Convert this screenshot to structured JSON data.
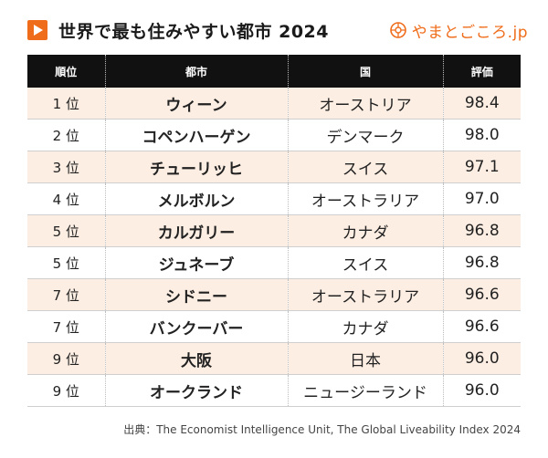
{
  "header": {
    "title": "世界で最も住みやすい都市 2024",
    "logo_text": "やまとごころ.jp",
    "brand_color": "#ef6c1a",
    "icon": "play-icon"
  },
  "chart_data": {
    "type": "table",
    "columns": [
      "順位",
      "都市",
      "国",
      "評価"
    ],
    "rows": [
      {
        "rank": "1 位",
        "city": "ウィーン",
        "country": "オーストリア",
        "score": "98.4"
      },
      {
        "rank": "2 位",
        "city": "コペンハーゲン",
        "country": "デンマーク",
        "score": "98.0"
      },
      {
        "rank": "3 位",
        "city": "チューリッヒ",
        "country": "スイス",
        "score": "97.1"
      },
      {
        "rank": "4 位",
        "city": "メルボルン",
        "country": "オーストラリア",
        "score": "97.0"
      },
      {
        "rank": "5 位",
        "city": "カルガリー",
        "country": "カナダ",
        "score": "96.8"
      },
      {
        "rank": "5 位",
        "city": "ジュネーブ",
        "country": "スイス",
        "score": "96.8"
      },
      {
        "rank": "7 位",
        "city": "シドニー",
        "country": "オーストラリア",
        "score": "96.6"
      },
      {
        "rank": "7 位",
        "city": "バンクーバー",
        "country": "カナダ",
        "score": "96.6"
      },
      {
        "rank": "9 位",
        "city": "大阪",
        "country": "日本",
        "score": "96.0"
      },
      {
        "rank": "9 位",
        "city": "オークランド",
        "country": "ニュージーランド",
        "score": "96.0"
      }
    ],
    "row_colors": [
      "#fdeee3",
      "#ffffff"
    ],
    "header_color": "#111111"
  },
  "source": "出典：The Economist Intelligence Unit, The Global Liveability Index 2024"
}
